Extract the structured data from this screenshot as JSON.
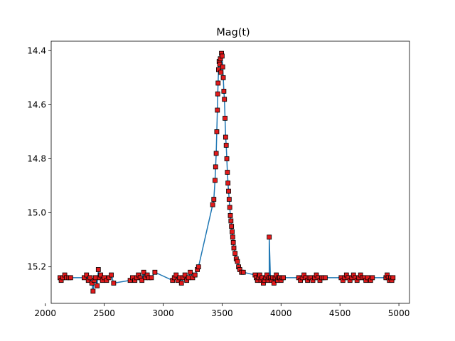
{
  "chart_data": {
    "type": "scatter",
    "title": "Mag(t)",
    "xlabel": "",
    "ylabel": "",
    "xlim": [
      2050,
      5090
    ],
    "ylim": [
      15.335,
      14.365
    ],
    "y_inverted": true,
    "grid": false,
    "x_ticks": [
      2000,
      2500,
      3000,
      3500,
      4000,
      4500,
      5000
    ],
    "y_ticks": [
      14.4,
      14.6,
      14.8,
      15.0,
      15.2
    ],
    "x_tick_labels": [
      "2000",
      "2500",
      "3000",
      "3500",
      "4000",
      "4500",
      "5000"
    ],
    "y_tick_labels": [
      "14.4",
      "14.6",
      "14.8",
      "15.0",
      "15.2"
    ],
    "colors": {
      "line": "#1f77b4",
      "marker_face": "#e31a1c",
      "marker_edge": "#000000"
    },
    "series": [
      {
        "style": "line+markers",
        "x": [
          2125,
          2135,
          2150,
          2165,
          2180,
          2200,
          2215,
          2330,
          2350,
          2365,
          2380,
          2395,
          2405,
          2415,
          2425,
          2440,
          2450,
          2460,
          2470,
          2485,
          2500,
          2520,
          2540,
          2560,
          2580,
          2720,
          2740,
          2760,
          2775,
          2790,
          2805,
          2820,
          2835,
          2850,
          2865,
          2880,
          2900,
          2930,
          3080,
          3095,
          3110,
          3125,
          3140,
          3155,
          3170,
          3185,
          3200,
          3215,
          3230,
          3250,
          3270,
          3290,
          3300,
          3420,
          3430,
          3440,
          3445,
          3450,
          3455,
          3460,
          3463,
          3466,
          3470,
          3475,
          3480,
          3485,
          3490,
          3495,
          3500,
          3505,
          3510,
          3515,
          3520,
          3525,
          3530,
          3535,
          3540,
          3545,
          3550,
          3555,
          3560,
          3565,
          3570,
          3575,
          3580,
          3585,
          3590,
          3595,
          3600,
          3610,
          3620,
          3630,
          3640,
          3650,
          3665,
          3680,
          3780,
          3790,
          3800,
          3810,
          3820,
          3830,
          3840,
          3850,
          3860,
          3870,
          3880,
          3890,
          3900,
          3900,
          3910,
          3920,
          3930,
          3940,
          3950,
          3960,
          3970,
          3980,
          3990,
          4000,
          4010,
          4020,
          4150,
          4165,
          4180,
          4195,
          4210,
          4225,
          4240,
          4255,
          4270,
          4285,
          4300,
          4315,
          4330,
          4345,
          4360,
          4375,
          4510,
          4525,
          4540,
          4555,
          4570,
          4585,
          4600,
          4615,
          4630,
          4645,
          4660,
          4675,
          4690,
          4705,
          4720,
          4735,
          4760,
          4775,
          4890,
          4900,
          4910,
          4920,
          4930,
          4940,
          4950
        ],
        "y": [
          15.24,
          15.25,
          15.24,
          15.23,
          15.24,
          15.24,
          15.24,
          15.24,
          15.23,
          15.25,
          15.24,
          15.26,
          15.29,
          15.25,
          15.24,
          15.27,
          15.21,
          15.24,
          15.23,
          15.25,
          15.24,
          15.25,
          15.24,
          15.23,
          15.26,
          15.25,
          15.24,
          15.25,
          15.24,
          15.23,
          15.24,
          15.25,
          15.22,
          15.24,
          15.23,
          15.24,
          15.24,
          15.22,
          15.25,
          15.24,
          15.23,
          15.25,
          15.24,
          15.26,
          15.24,
          15.23,
          15.25,
          15.24,
          15.22,
          15.24,
          15.23,
          15.21,
          15.2,
          14.97,
          14.95,
          14.88,
          14.83,
          14.78,
          14.7,
          14.62,
          14.56,
          14.52,
          14.47,
          14.44,
          14.45,
          14.43,
          14.48,
          14.41,
          14.42,
          14.46,
          14.5,
          14.55,
          14.58,
          14.65,
          14.72,
          14.75,
          14.8,
          14.85,
          14.89,
          14.92,
          14.95,
          14.98,
          15.01,
          15.03,
          15.05,
          15.07,
          15.09,
          15.11,
          15.13,
          15.15,
          15.17,
          15.18,
          15.2,
          15.21,
          15.22,
          15.22,
          15.23,
          15.24,
          15.25,
          15.24,
          15.23,
          15.25,
          15.24,
          15.26,
          15.25,
          15.24,
          15.23,
          15.25,
          15.24,
          15.09,
          15.24,
          15.25,
          15.24,
          15.26,
          15.24,
          15.23,
          15.25,
          15.24,
          15.24,
          15.25,
          15.24,
          15.24,
          15.24,
          15.25,
          15.24,
          15.23,
          15.24,
          15.25,
          15.24,
          15.24,
          15.25,
          15.24,
          15.23,
          15.24,
          15.25,
          15.24,
          15.24,
          15.24,
          15.24,
          15.25,
          15.24,
          15.23,
          15.24,
          15.25,
          15.24,
          15.23,
          15.24,
          15.25,
          15.24,
          15.23,
          15.24,
          15.24,
          15.25,
          15.24,
          15.25,
          15.24,
          15.24,
          15.23,
          15.24,
          15.25,
          15.24,
          15.25,
          15.24
        ]
      }
    ]
  }
}
